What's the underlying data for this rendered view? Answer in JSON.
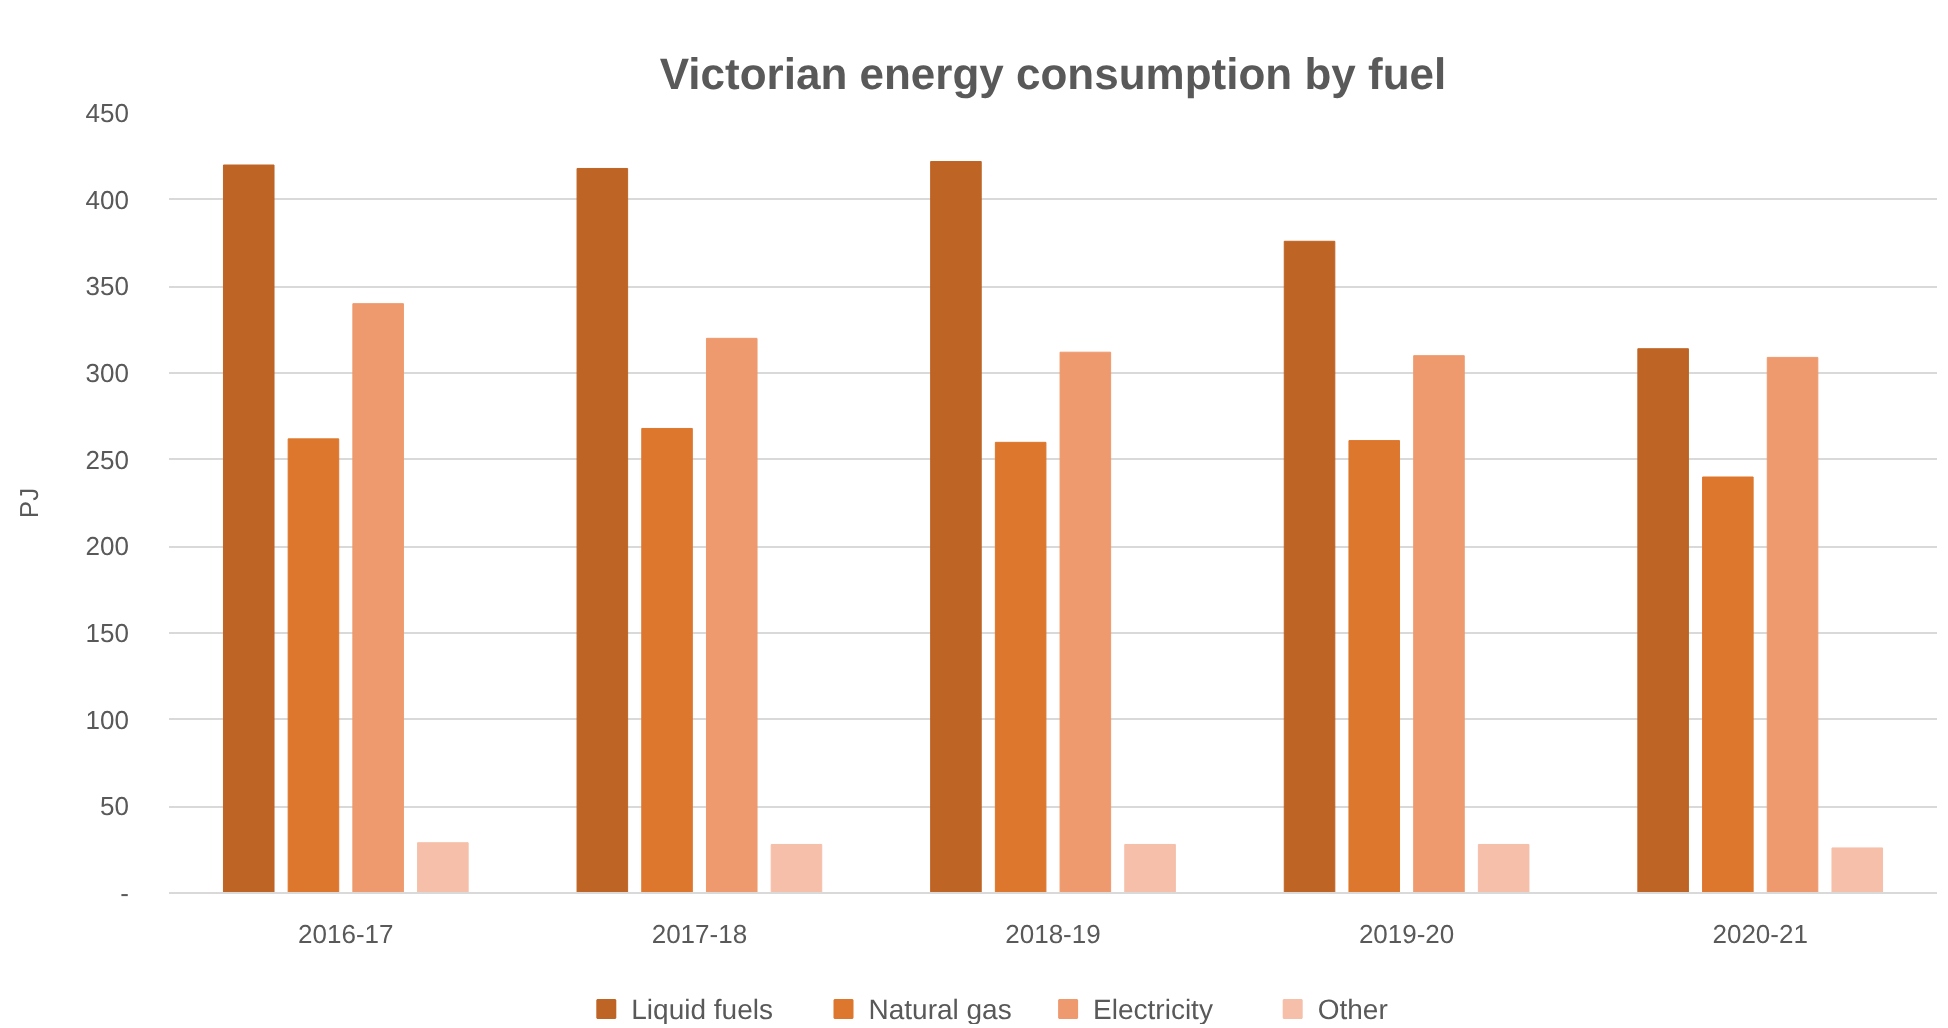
{
  "chart_data": {
    "type": "bar",
    "title": "Victorian energy consumption by fuel",
    "ylabel": "PJ",
    "categories": [
      "2016-17",
      "2017-18",
      "2018-19",
      "2019-20",
      "2020-21"
    ],
    "series": [
      {
        "name": "Liquid fuels",
        "color": "#be6424",
        "values": [
          420,
          418,
          422,
          376,
          314
        ]
      },
      {
        "name": "Natural gas",
        "color": "#dd772d",
        "values": [
          262,
          268,
          260,
          261,
          240
        ]
      },
      {
        "name": "Electricity",
        "color": "#ee9a6e",
        "values": [
          340,
          320,
          312,
          310,
          309
        ]
      },
      {
        "name": "Other",
        "color": "#f5bfa9",
        "values": [
          29,
          28,
          28,
          28,
          26
        ]
      }
    ],
    "ylim": [
      0,
      450
    ],
    "yticks": [
      {
        "value": 0,
        "label": "-"
      },
      50,
      100,
      150,
      200,
      250,
      300,
      350,
      400,
      450
    ],
    "grid": "y",
    "legend": "bottom"
  }
}
